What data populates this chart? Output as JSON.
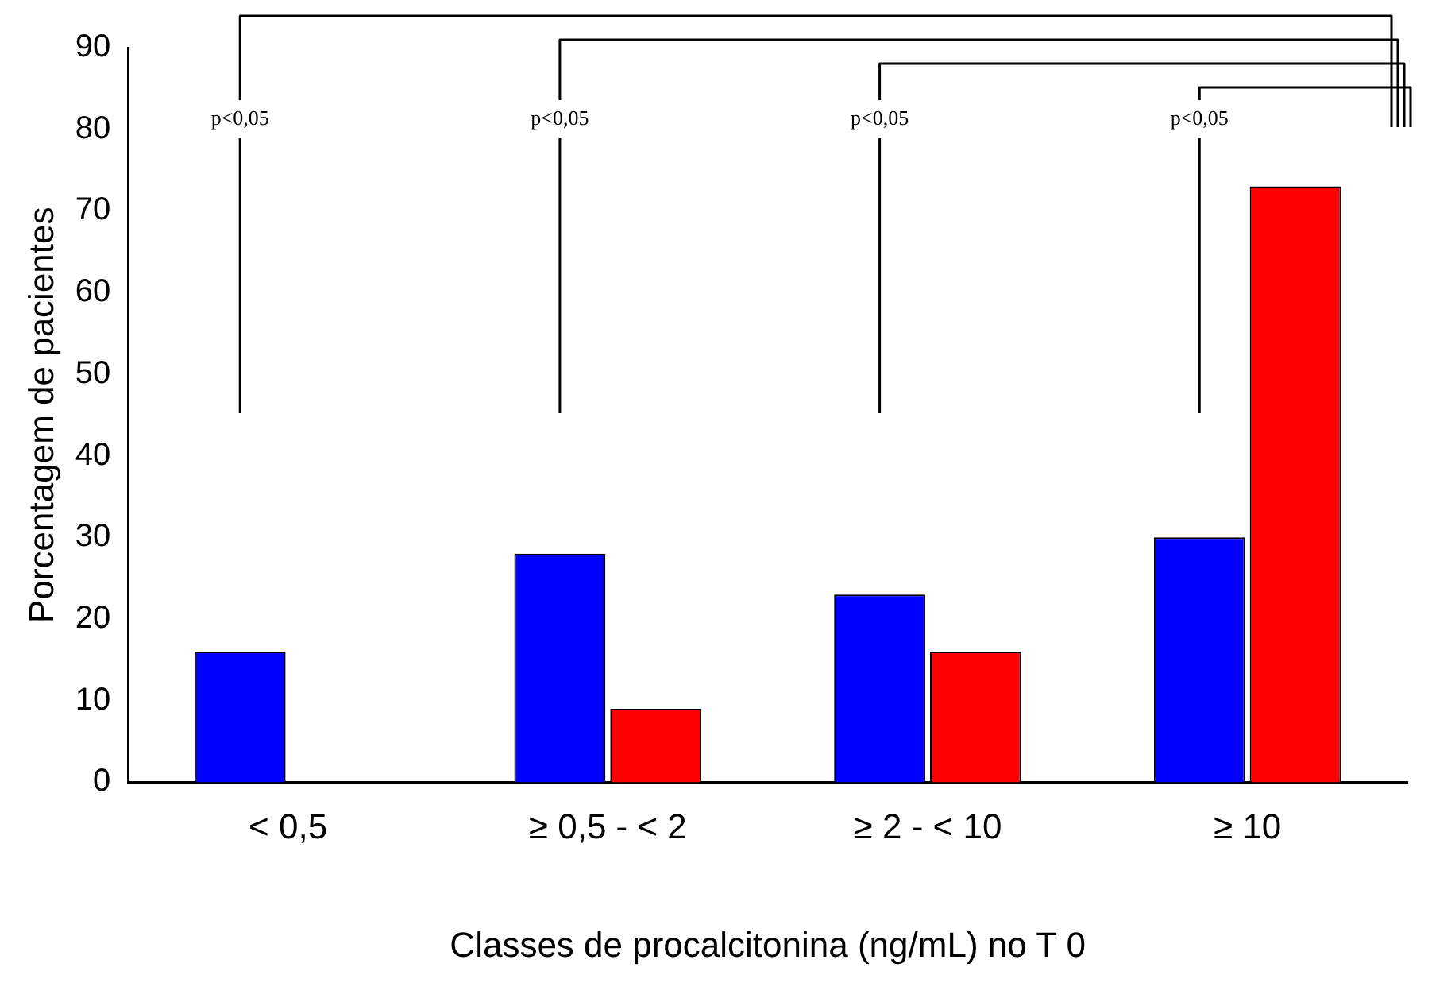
{
  "chart_data": {
    "type": "bar",
    "xlabel": "Classes de procalcitonina (ng/mL) no T 0",
    "ylabel": "Porcentagem de pacientes",
    "categories": [
      "< 0,5",
      "≥ 0,5 - < 2",
      "≥ 2 - < 10",
      "≥ 10"
    ],
    "series": [
      {
        "color": "#0000ff",
        "values": [
          16,
          28,
          23,
          30
        ]
      },
      {
        "color": "#ff0000",
        "values": [
          0,
          9,
          16,
          73
        ]
      }
    ],
    "ylim": [
      0,
      90
    ],
    "yticks": [
      0,
      10,
      20,
      30,
      40,
      50,
      60,
      70,
      80,
      90
    ],
    "grid": false,
    "legend": false,
    "annotations": [
      "p<0,05",
      "p<0,05",
      "p<0,05",
      "p<0,05"
    ]
  }
}
